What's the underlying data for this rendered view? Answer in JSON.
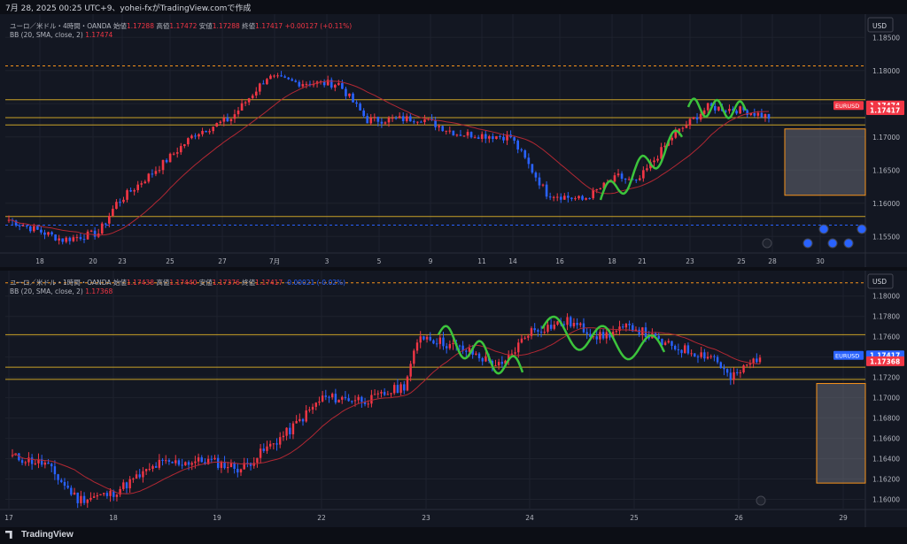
{
  "header": {
    "title": "7月 28, 2025 00:25 UTC+9、yohei-fxがTradingView.comで作成"
  },
  "footer": {
    "brand": "TradingView"
  },
  "colors": {
    "bg": "#131722",
    "grid": "#1e222d",
    "up": "#f23645",
    "down": "#2962ff",
    "bb": "#b22833",
    "hline": "#c9a227",
    "dotted": "#f7931a",
    "box": "#787b86",
    "curve": "#3cc43c",
    "text": "#b2b5be"
  },
  "chart_data": [
    {
      "type": "candlestick",
      "symbol_line": "ユーロ／米ドル・4時間・OANDA",
      "ohlc_text": {
        "open_label": "始値",
        "open": "1.17288",
        "high_label": "高値",
        "high": "1.17472",
        "low_label": "安値",
        "low": "1.17288",
        "close_label": "終値",
        "close": "1.17417",
        "change": "+0.00127 (+0.11%)"
      },
      "indicator": {
        "label": "BB (20, SMA, close, 2)",
        "value": "1.17474"
      },
      "currency": "USD",
      "ylim": [
        1.1525,
        1.1885
      ],
      "y_ticks": [
        "1.18500",
        "1.18000",
        "1.17500",
        "1.17000",
        "1.16500",
        "1.16000",
        "1.15500"
      ],
      "x_ticks": [
        "18",
        "20",
        "23",
        "25",
        "27",
        "7月",
        "3",
        "5",
        "9",
        "11",
        "14",
        "16",
        "18",
        "21",
        "23",
        "25",
        "28",
        "30"
      ],
      "price_labels": [
        {
          "text": "1.17474",
          "value": 1.17474,
          "color": "#f23645"
        },
        {
          "text": "1.17417",
          "value": 1.17417,
          "color": "#f23645"
        }
      ],
      "symbol_tag": "EURUSD",
      "hlines": [
        1.1756,
        1.1729,
        1.1718,
        1.158
      ],
      "dotted": [
        1.1807,
        1.1567
      ],
      "candles": []
    },
    {
      "type": "candlestick",
      "symbol_line": "ユーロ／米ドル・1時間・OANDA",
      "ohlc_text": {
        "open_label": "始値",
        "open": "1.17438",
        "high_label": "高値",
        "high": "1.17440",
        "low_label": "安値",
        "low": "1.17376",
        "close_label": "終値",
        "close": "1.17417",
        "change": "-0.00021 (-0.02%)"
      },
      "indicator": {
        "label": "BB (20, SMA, close, 2)",
        "value": "1.17368"
      },
      "currency": "USD",
      "ylim": [
        1.159,
        1.1825
      ],
      "y_ticks": [
        "1.18000",
        "1.17800",
        "1.17600",
        "1.17400",
        "1.17200",
        "1.17000",
        "1.16800",
        "1.16600",
        "1.16400",
        "1.16200",
        "1.16000"
      ],
      "x_ticks": [
        "17",
        "18",
        "19",
        "22",
        "23",
        "24",
        "25",
        "26",
        "29"
      ],
      "price_labels": [
        {
          "text": "1.17417",
          "value": 1.17417,
          "color": "#2962ff"
        },
        {
          "text": "1.17368",
          "value": 1.17368,
          "color": "#f23645"
        }
      ],
      "symbol_tag": "EURUSD",
      "hlines": [
        1.1762,
        1.173,
        1.1718
      ],
      "dotted": [
        1.1813
      ]
    }
  ]
}
